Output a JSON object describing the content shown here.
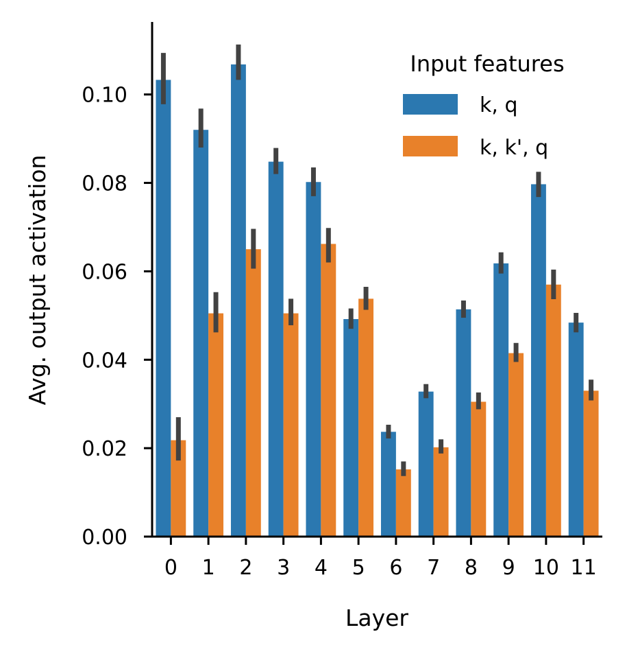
{
  "chart_data": {
    "type": "bar",
    "xlabel": "Layer",
    "ylabel": "Avg. output activation",
    "categories": [
      "0",
      "1",
      "2",
      "3",
      "4",
      "5",
      "6",
      "7",
      "8",
      "9",
      "10",
      "11"
    ],
    "ylim": [
      0,
      0.1164
    ],
    "yticks": [
      "0.00",
      "0.02",
      "0.04",
      "0.06",
      "0.08",
      "0.10"
    ],
    "grid": false,
    "legend": {
      "title": "Input features",
      "placement": "top-right"
    },
    "series": [
      {
        "name": "k, q",
        "color": "#2b78b0",
        "values": [
          0.1033,
          0.092,
          0.1068,
          0.0848,
          0.0802,
          0.0492,
          0.0237,
          0.0328,
          0.0514,
          0.0618,
          0.0797,
          0.0484
        ],
        "err_low": [
          0.0978,
          0.088,
          0.1033,
          0.082,
          0.077,
          0.047,
          0.0222,
          0.0313,
          0.0495,
          0.0595,
          0.0768,
          0.0462
        ],
        "err_high": [
          0.1094,
          0.0968,
          0.1113,
          0.0879,
          0.0835,
          0.0516,
          0.0253,
          0.0345,
          0.0534,
          0.0643,
          0.0825,
          0.0506
        ]
      },
      {
        "name": "k, k', q",
        "color": "#e8812a",
        "values": [
          0.0218,
          0.0505,
          0.065,
          0.0505,
          0.0662,
          0.0538,
          0.0152,
          0.0202,
          0.0305,
          0.0415,
          0.057,
          0.033
        ],
        "err_low": [
          0.0172,
          0.0462,
          0.0606,
          0.0478,
          0.062,
          0.0513,
          0.0137,
          0.0188,
          0.0288,
          0.0395,
          0.0537,
          0.0308
        ],
        "err_high": [
          0.027,
          0.0553,
          0.0696,
          0.0538,
          0.0698,
          0.0565,
          0.017,
          0.022,
          0.0326,
          0.0438,
          0.0604,
          0.0355
        ]
      }
    ]
  }
}
